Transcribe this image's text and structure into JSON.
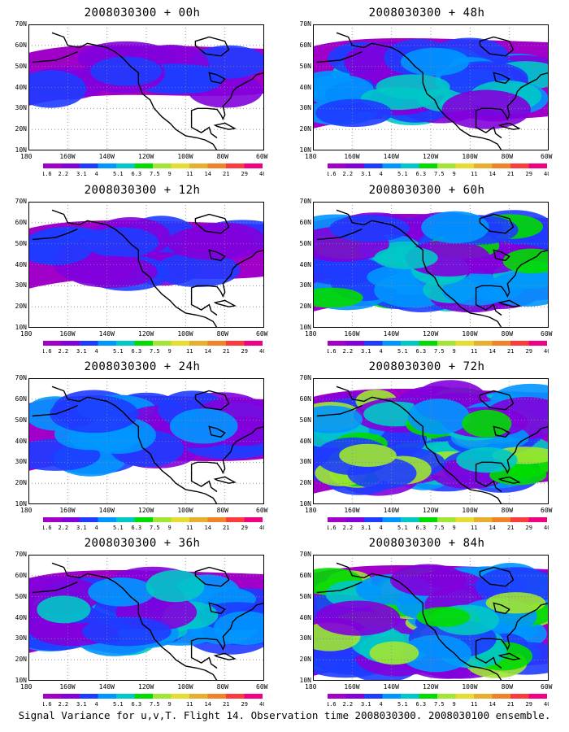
{
  "panels": [
    {
      "title": "2008030300 + 00h",
      "level": 0
    },
    {
      "title": "2008030300 + 48h",
      "level": 4
    },
    {
      "title": "2008030300 + 12h",
      "level": 1
    },
    {
      "title": "2008030300 + 60h",
      "level": 5
    },
    {
      "title": "2008030300 + 24h",
      "level": 2
    },
    {
      "title": "2008030300 + 72h",
      "level": 6
    },
    {
      "title": "2008030300 + 36h",
      "level": 3
    },
    {
      "title": "2008030300 + 84h",
      "level": 7
    }
  ],
  "lat_labels": [
    "70N",
    "60N",
    "50N",
    "40N",
    "30N",
    "20N",
    "10N"
  ],
  "lon_labels": [
    "180",
    "160W",
    "140W",
    "120W",
    "100W",
    "80W",
    "60W"
  ],
  "colorbar": {
    "labels": [
      "1.6",
      "2.2",
      "3.1",
      "4",
      "5.1",
      "6.3",
      "7.5",
      "9",
      "11",
      "14",
      "21",
      "29",
      "40"
    ],
    "colors": [
      "#a000c8",
      "#8200dc",
      "#1e3cff",
      "#0096ff",
      "#00c8c8",
      "#00dc00",
      "#a0e632",
      "#e6dc32",
      "#e6af2d",
      "#f08228",
      "#fa3c3c",
      "#f00082"
    ]
  },
  "footer": "Signal Variance for u,v,T. Flight 14. Observation time 2008030300. 2008030100 ensemble."
}
